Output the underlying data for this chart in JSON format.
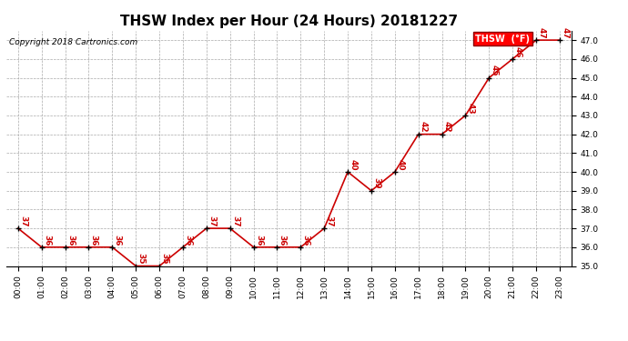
{
  "title": "THSW Index per Hour (24 Hours) 20181227",
  "copyright": "Copyright 2018 Cartronics.com",
  "legend_label": "THSW  (°F)",
  "hours": [
    0,
    1,
    2,
    3,
    4,
    5,
    6,
    7,
    8,
    9,
    10,
    11,
    12,
    13,
    14,
    15,
    16,
    17,
    18,
    19,
    20,
    21,
    22,
    23
  ],
  "values": [
    37,
    36,
    36,
    36,
    36,
    35,
    35,
    36,
    37,
    37,
    36,
    36,
    36,
    37,
    40,
    39,
    40,
    42,
    42,
    43,
    45,
    46,
    47,
    47
  ],
  "line_color": "#cc0000",
  "marker_color": "#000000",
  "label_color": "#cc0000",
  "background_color": "#ffffff",
  "grid_color": "#aaaaaa",
  "ylim": [
    35.0,
    47.5
  ],
  "ytick_min": 35.0,
  "ytick_max": 47.0,
  "ytick_step": 1.0,
  "title_fontsize": 11,
  "label_fontsize": 6.5,
  "tick_fontsize": 6.5,
  "copyright_fontsize": 6.5,
  "linewidth": 1.2,
  "markersize": 3
}
